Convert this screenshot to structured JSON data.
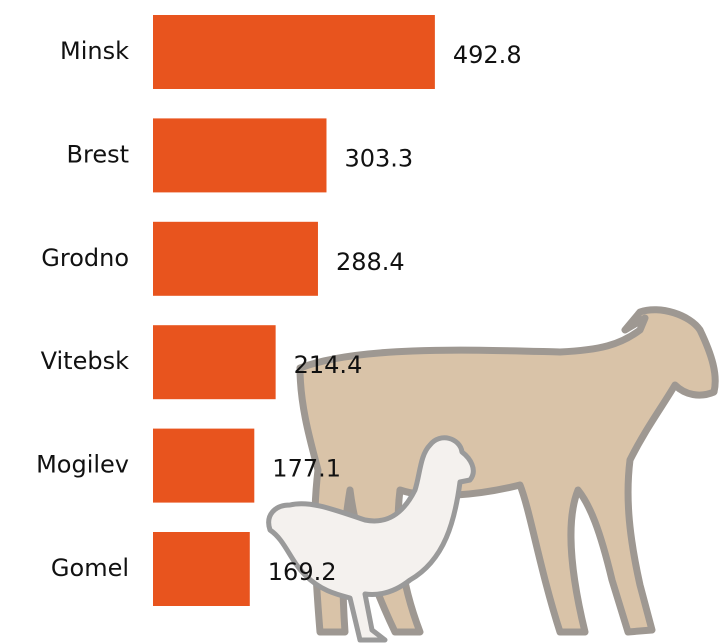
{
  "chart_data": {
    "type": "bar",
    "orientation": "horizontal",
    "categories": [
      "Minsk",
      "Brest",
      "Grodno",
      "Vitebsk",
      "Mogilev",
      "Gomel"
    ],
    "values": [
      492.8,
      303.3,
      288.4,
      214.4,
      177.1,
      169.2
    ],
    "color": "#e8541e"
  }
}
